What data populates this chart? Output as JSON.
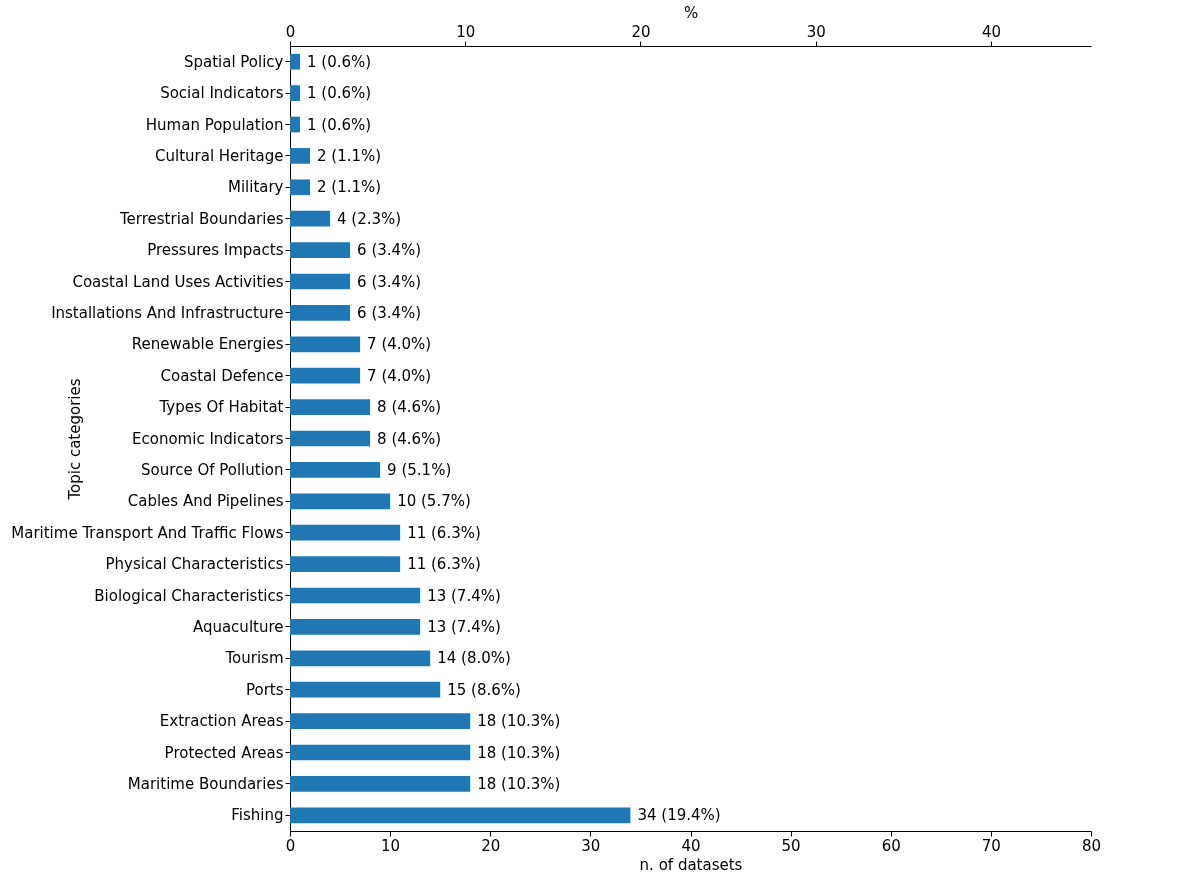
{
  "chart_data": {
    "type": "bar",
    "orientation": "horizontal",
    "xlabel": "n. of datasets",
    "ylabel": "Topic categories",
    "x2label": "%",
    "categories": [
      "Spatial Policy",
      "Social Indicators",
      "Human Population",
      "Cultural Heritage",
      "Military",
      "Terrestrial Boundaries",
      "Pressures Impacts",
      "Coastal Land Uses Activities",
      "Installations And Infrastructure",
      "Renewable Energies",
      "Coastal Defence",
      "Types Of Habitat",
      "Economic Indicators",
      "Source Of Pollution",
      "Cables And Pipelines",
      "Maritime Transport And Traffic Flows",
      "Physical Characteristics",
      "Biological Characteristics",
      "Aquaculture",
      "Tourism",
      "Ports",
      "Extraction Areas",
      "Protected Areas",
      "Maritime Boundaries",
      "Fishing"
    ],
    "values": [
      1,
      1,
      1,
      2,
      2,
      4,
      6,
      6,
      6,
      7,
      7,
      8,
      8,
      9,
      10,
      11,
      11,
      13,
      13,
      14,
      15,
      18,
      18,
      18,
      34
    ],
    "value_labels": [
      "1 (0.6%)",
      "1 (0.6%)",
      "1 (0.6%)",
      "2 (1.1%)",
      "2 (1.1%)",
      "4 (2.3%)",
      "6 (3.4%)",
      "6 (3.4%)",
      "6 (3.4%)",
      "7 (4.0%)",
      "7 (4.0%)",
      "8 (4.6%)",
      "8 (4.6%)",
      "9 (5.1%)",
      "10 (5.7%)",
      "11 (6.3%)",
      "11 (6.3%)",
      "13 (7.4%)",
      "13 (7.4%)",
      "14 (8.0%)",
      "15 (8.6%)",
      "18 (10.3%)",
      "18 (10.3%)",
      "18 (10.3%)",
      "34 (19.4%)"
    ],
    "color": "#1f77b4",
    "xlim": [
      0,
      80
    ],
    "xticks": [
      0,
      10,
      20,
      30,
      40,
      50,
      60,
      70,
      80
    ],
    "x2lim": [
      0,
      45.71
    ],
    "x2ticks": [
      0,
      10,
      20,
      30,
      40
    ],
    "grid": false
  }
}
